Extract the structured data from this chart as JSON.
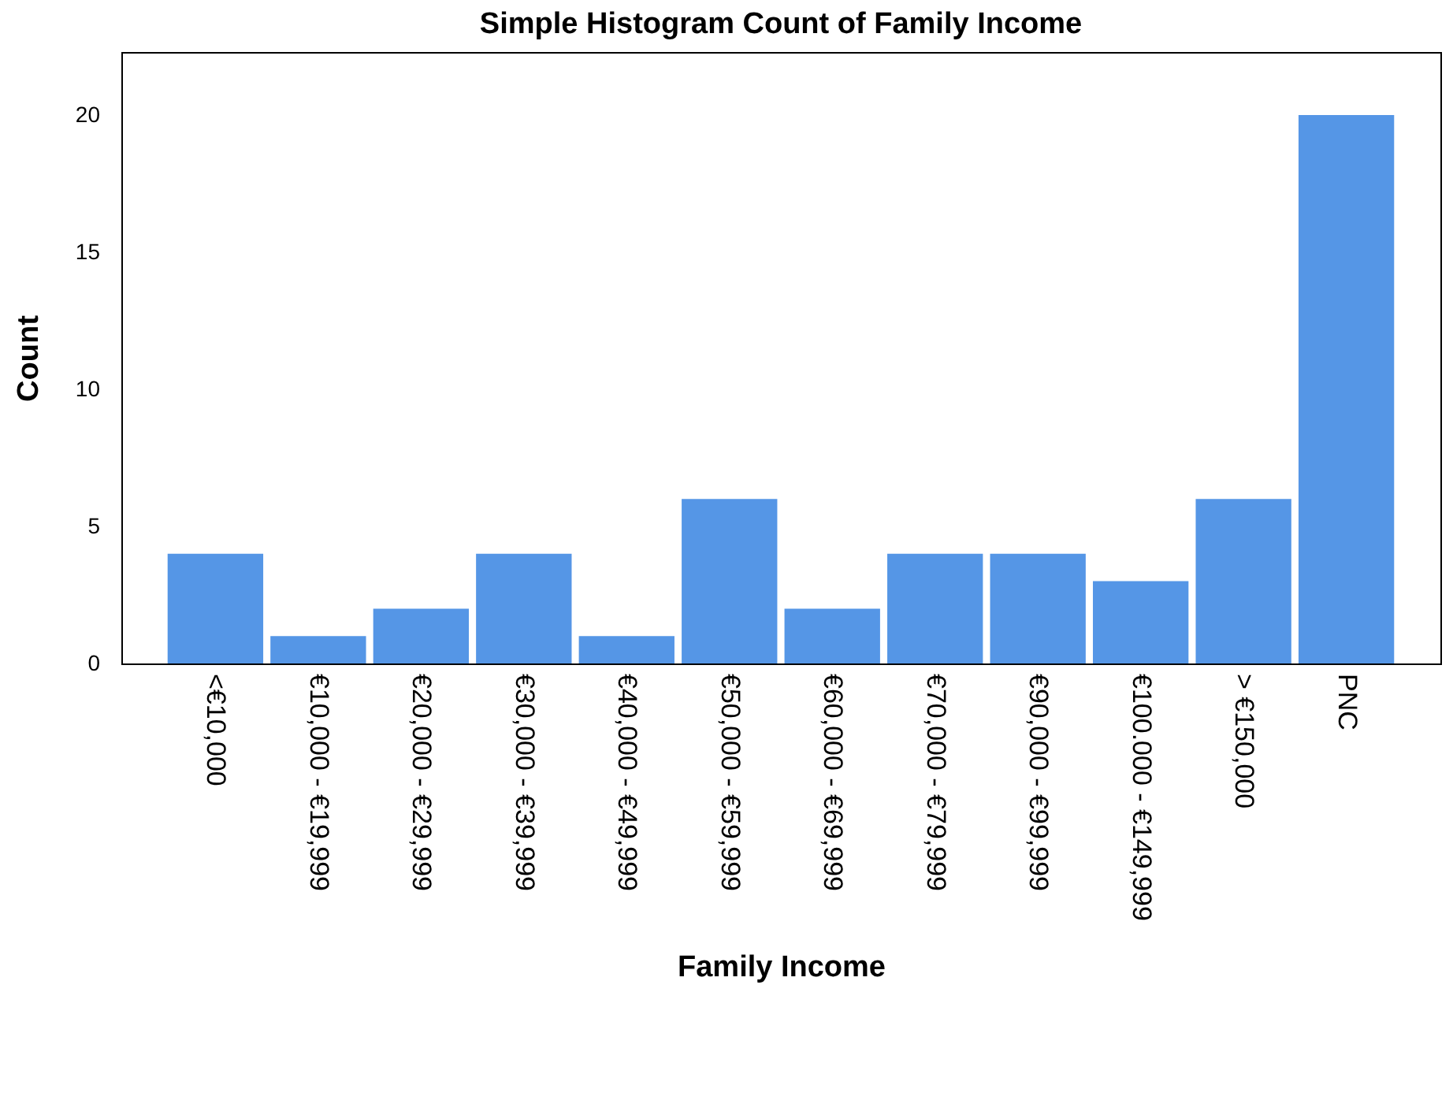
{
  "chart_data": {
    "type": "bar",
    "title": "Simple Histogram Count of Family Income",
    "xlabel": "Family Income",
    "ylabel": "Count",
    "categories": [
      "<€10,000",
      "€10,000 - €19,999",
      "€20,000 - €29,999",
      "€30,000 - €39,999",
      "€40,000 - €49,999",
      "€50,000 - €59,999",
      "€60,000 - €69,999",
      "€70,000 - €79,999",
      "€90,000 - €99,999",
      "€100.000 - €149,999",
      "> €150,000",
      "PNC"
    ],
    "values": [
      4,
      1,
      2,
      4,
      1,
      6,
      2,
      4,
      4,
      3,
      6,
      20
    ],
    "color": "#5596e6",
    "ylim": [
      0,
      22.3
    ],
    "yticks": [
      0,
      5,
      10,
      15,
      20
    ],
    "grid": false
  }
}
